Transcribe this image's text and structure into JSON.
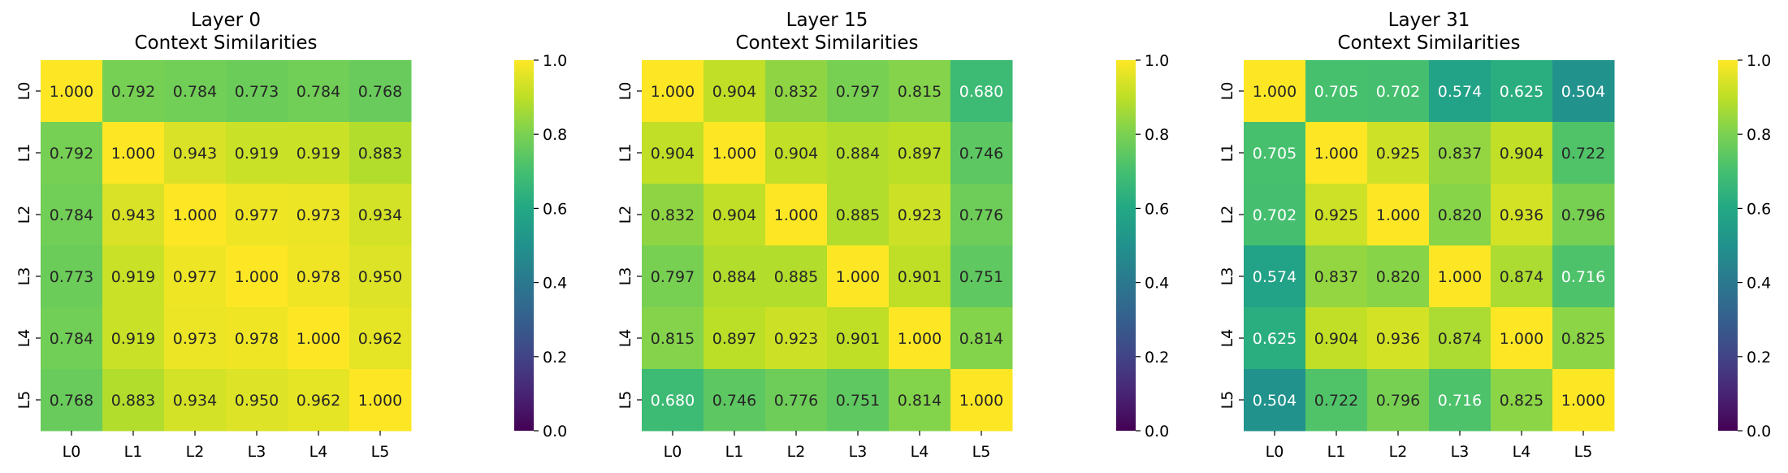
{
  "chart_data": [
    {
      "type": "heatmap",
      "title": "Layer 0\nContext Similarities",
      "x_labels": [
        "L0",
        "L1",
        "L2",
        "L3",
        "L4",
        "L5"
      ],
      "y_labels": [
        "L0",
        "L1",
        "L2",
        "L3",
        "L4",
        "L5"
      ],
      "values": [
        [
          1.0,
          0.792,
          0.784,
          0.773,
          0.784,
          0.768
        ],
        [
          0.792,
          1.0,
          0.943,
          0.919,
          0.919,
          0.883
        ],
        [
          0.784,
          0.943,
          1.0,
          0.977,
          0.973,
          0.934
        ],
        [
          0.773,
          0.919,
          0.977,
          1.0,
          0.978,
          0.95
        ],
        [
          0.784,
          0.919,
          0.973,
          0.978,
          1.0,
          0.962
        ],
        [
          0.768,
          0.883,
          0.934,
          0.95,
          0.962,
          1.0
        ]
      ],
      "colormap": "viridis",
      "vmin": 0.0,
      "vmax": 1.0,
      "colorbar_ticks": [
        0.0,
        0.2,
        0.4,
        0.6,
        0.8,
        1.0
      ]
    },
    {
      "type": "heatmap",
      "title": "Layer 15\nContext Similarities",
      "x_labels": [
        "L0",
        "L1",
        "L2",
        "L3",
        "L4",
        "L5"
      ],
      "y_labels": [
        "L0",
        "L1",
        "L2",
        "L3",
        "L4",
        "L5"
      ],
      "values": [
        [
          1.0,
          0.904,
          0.832,
          0.797,
          0.815,
          0.68
        ],
        [
          0.904,
          1.0,
          0.904,
          0.884,
          0.897,
          0.746
        ],
        [
          0.832,
          0.904,
          1.0,
          0.885,
          0.923,
          0.776
        ],
        [
          0.797,
          0.884,
          0.885,
          1.0,
          0.901,
          0.751
        ],
        [
          0.815,
          0.897,
          0.923,
          0.901,
          1.0,
          0.814
        ],
        [
          0.68,
          0.746,
          0.776,
          0.751,
          0.814,
          1.0
        ]
      ],
      "colormap": "viridis",
      "vmin": 0.0,
      "vmax": 1.0,
      "colorbar_ticks": [
        0.0,
        0.2,
        0.4,
        0.6,
        0.8,
        1.0
      ]
    },
    {
      "type": "heatmap",
      "title": "Layer 31\nContext Similarities",
      "x_labels": [
        "L0",
        "L1",
        "L2",
        "L3",
        "L4",
        "L5"
      ],
      "y_labels": [
        "L0",
        "L1",
        "L2",
        "L3",
        "L4",
        "L5"
      ],
      "values": [
        [
          1.0,
          0.705,
          0.702,
          0.574,
          0.625,
          0.504
        ],
        [
          0.705,
          1.0,
          0.925,
          0.837,
          0.904,
          0.722
        ],
        [
          0.702,
          0.925,
          1.0,
          0.82,
          0.936,
          0.796
        ],
        [
          0.574,
          0.837,
          0.82,
          1.0,
          0.874,
          0.716
        ],
        [
          0.625,
          0.904,
          0.936,
          0.874,
          1.0,
          0.825
        ],
        [
          0.504,
          0.722,
          0.796,
          0.716,
          0.825,
          1.0
        ]
      ],
      "colormap": "viridis",
      "vmin": 0.0,
      "vmax": 1.0,
      "colorbar_ticks": [
        0.0,
        0.2,
        0.4,
        0.6,
        0.8,
        1.0
      ]
    }
  ]
}
